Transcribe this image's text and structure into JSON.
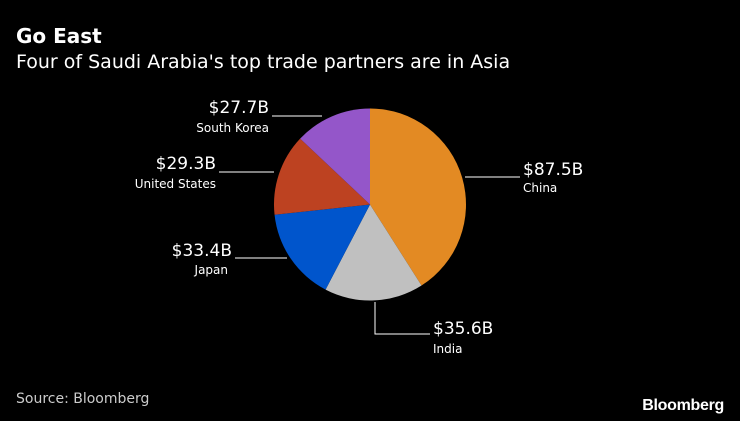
{
  "header": {
    "title": "Go East",
    "subtitle": "Four of Saudi Arabia's top trade partners are in Asia"
  },
  "footer": {
    "source": "Source: Bloomberg",
    "brand": "Bloomberg"
  },
  "chart_data": {
    "type": "pie",
    "title": "Go East",
    "subtitle": "Four of Saudi Arabia's top trade partners are in Asia",
    "unit": "billion USD",
    "start_angle": "12 o'clock, clockwise",
    "slices": [
      {
        "name": "China",
        "value": 87.5,
        "label": "$87.5B",
        "color": "#E38A23"
      },
      {
        "name": "India",
        "value": 35.6,
        "label": "$35.6B",
        "color": "#C0C0C0"
      },
      {
        "name": "Japan",
        "value": 33.4,
        "label": "$33.4B",
        "color": "#0055CC"
      },
      {
        "name": "United States",
        "value": 29.3,
        "label": "$29.3B",
        "color": "#BD4221"
      },
      {
        "name": "South Korea",
        "value": 27.7,
        "label": "$27.7B",
        "color": "#9456C9"
      }
    ]
  }
}
